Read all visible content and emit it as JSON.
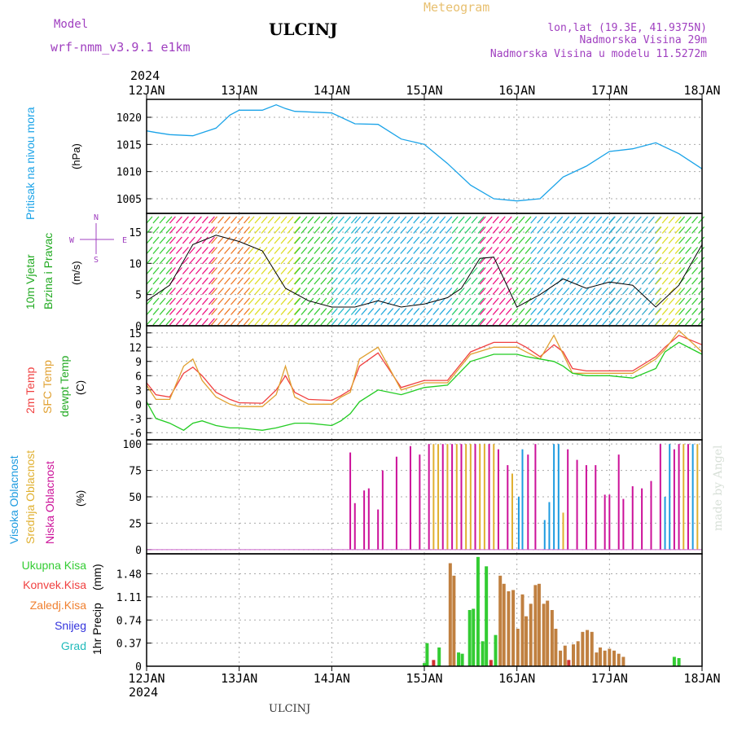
{
  "header": {
    "model_label": "Model",
    "model_name": "wrf-nmm_v3.9.1 e1km",
    "station": "ULCINJ",
    "meteogram": "Meteogram",
    "lonlat": "lon,lat (19.3E, 41.9375N)",
    "alt": "Nadmorska Visina 29m",
    "alt_model": "Nadmorska Visina u modelu 11.5272m",
    "footer_station": "ULCINJ",
    "credit": "made by Angel",
    "year": "2024"
  },
  "colors": {
    "pressure": "#1aa3e8",
    "temp2m": "#f04040",
    "sfc": "#e0a030",
    "dew": "#22cc22",
    "low": "#cc1199",
    "mid": "#e0b030",
    "high": "#1e9be0",
    "total": "#33cc33",
    "conv": "#d03030",
    "strat": "#c08040"
  },
  "chart_data": [
    {
      "type": "line",
      "panel": "pressure",
      "ylabel": [
        "Pritisak na nivou mora",
        "(hPa)"
      ],
      "x_ticks": [
        "12JAN",
        "13JAN",
        "14JAN",
        "15JAN",
        "16JAN",
        "17JAN",
        "18JAN"
      ],
      "y_ticks": [
        1005,
        1010,
        1015,
        1020
      ],
      "ylim": [
        1002.3,
        1023.3
      ],
      "grid": true,
      "series": [
        {
          "x": [
            0,
            0.1,
            0.25,
            0.5,
            0.75,
            0.9,
            1.0,
            1.25,
            1.4,
            1.5,
            1.6,
            2.0,
            2.25,
            2.5,
            2.75,
            3.0,
            3.25,
            3.5,
            3.75,
            4.0,
            4.25,
            4.5,
            4.75,
            5.0,
            5.25,
            5.5,
            5.75,
            6.0
          ],
          "values": [
            1017.5,
            1017.2,
            1016.8,
            1016.6,
            1018,
            1020.4,
            1021.3,
            1021.3,
            1022.3,
            1021.6,
            1021.1,
            1020.8,
            1018.8,
            1018.7,
            1016,
            1015,
            1011.5,
            1007.5,
            1005,
            1004.6,
            1005,
            1009,
            1011,
            1013.7,
            1014.2,
            1015.3,
            1013.3,
            1010.5
          ]
        }
      ]
    },
    {
      "type": "line",
      "panel": "wind",
      "ylabel": [
        "10m Vjetar",
        "Brzina i Pravac",
        "(m/s)"
      ],
      "compass": {
        "n": "N",
        "s": "S",
        "e": "E",
        "w": "W"
      },
      "y_ticks": [
        0,
        5,
        10,
        15
      ],
      "ylim": [
        0,
        18
      ],
      "grid": true,
      "series": [
        {
          "x": [
            0,
            0.25,
            0.5,
            0.75,
            1.0,
            1.25,
            1.5,
            1.75,
            2.0,
            2.25,
            2.5,
            2.75,
            3.0,
            3.25,
            3.4,
            3.6,
            3.75,
            4.0,
            4.25,
            4.5,
            4.75,
            5.0,
            5.25,
            5.5,
            5.75,
            6.0
          ],
          "values": [
            4,
            6.5,
            13,
            14.5,
            13.5,
            12,
            6,
            4,
            3,
            3,
            4,
            3,
            3.5,
            4.5,
            6,
            10.8,
            11,
            3,
            5,
            7.5,
            6,
            7,
            6.5,
            3,
            6.5,
            13
          ]
        }
      ],
      "arrow_bands": [
        {
          "x0": 0.0,
          "x1": 0.25,
          "color": "#33cc33"
        },
        {
          "x0": 0.25,
          "x1": 0.7,
          "color": "#ee1180"
        },
        {
          "x0": 0.7,
          "x1": 1.1,
          "color": "#ee7722"
        },
        {
          "x0": 1.1,
          "x1": 1.6,
          "color": "#dddd22"
        },
        {
          "x0": 1.6,
          "x1": 2.0,
          "color": "#33cc33"
        },
        {
          "x0": 2.0,
          "x1": 2.25,
          "color": "#22bbcc"
        },
        {
          "x0": 2.25,
          "x1": 3.3,
          "color": "#22aadd"
        },
        {
          "x0": 3.3,
          "x1": 3.6,
          "color": "#22cc66"
        },
        {
          "x0": 3.6,
          "x1": 3.95,
          "color": "#ee1180"
        },
        {
          "x0": 3.95,
          "x1": 4.15,
          "color": "#33cc33"
        },
        {
          "x0": 4.15,
          "x1": 5.0,
          "color": "#22aadd"
        },
        {
          "x0": 5.0,
          "x1": 5.5,
          "color": "#33aacc"
        },
        {
          "x0": 5.5,
          "x1": 5.75,
          "color": "#dddd22"
        },
        {
          "x0": 5.75,
          "x1": 6.0,
          "color": "#33cc33"
        }
      ]
    },
    {
      "type": "line",
      "panel": "temperature",
      "ylabel": [
        "2m Temp",
        "SFC Temp",
        "dewpt Temp",
        "(C)"
      ],
      "y_ticks": [
        -6,
        -3,
        0,
        3,
        6,
        9,
        12,
        15
      ],
      "ylim": [
        -7.5,
        16.5
      ],
      "grid": true,
      "series": [
        {
          "name": "2m Temp",
          "x": [
            0,
            0.1,
            0.25,
            0.4,
            0.5,
            0.6,
            0.75,
            0.9,
            1.0,
            1.25,
            1.4,
            1.5,
            1.6,
            1.75,
            2.0,
            2.1,
            2.2,
            2.3,
            2.5,
            2.75,
            3.0,
            3.25,
            3.5,
            3.75,
            4.0,
            4.1,
            4.25,
            4.4,
            4.5,
            4.6,
            4.75,
            5.0,
            5.25,
            5.5,
            5.6,
            5.75,
            6.0
          ],
          "values": [
            4.5,
            2,
            1.5,
            6.5,
            7.8,
            6,
            2.5,
            1,
            0.3,
            0.2,
            3,
            6,
            2.5,
            1,
            0.8,
            1.8,
            3,
            8,
            10.8,
            3.5,
            5,
            5,
            11,
            13,
            13,
            12,
            10,
            12.5,
            11,
            7.5,
            7,
            7,
            7,
            10,
            12,
            14.5,
            12.5
          ]
        },
        {
          "name": "SFC Temp",
          "x": [
            0,
            0.1,
            0.25,
            0.4,
            0.5,
            0.6,
            0.75,
            0.9,
            1.0,
            1.25,
            1.4,
            1.5,
            1.6,
            1.75,
            2.0,
            2.1,
            2.2,
            2.3,
            2.5,
            2.75,
            3.0,
            3.25,
            3.5,
            3.75,
            4.0,
            4.1,
            4.25,
            4.4,
            4.5,
            4.6,
            4.75,
            5.0,
            5.25,
            5.5,
            5.6,
            5.75,
            6.0
          ],
          "values": [
            4,
            1,
            1,
            8,
            9.5,
            5,
            1.5,
            0,
            -0.5,
            -0.5,
            2,
            8,
            1.5,
            0,
            0,
            1.5,
            2.5,
            9.5,
            12,
            3,
            4.5,
            4.5,
            10.5,
            12,
            12,
            11,
            9.5,
            14.5,
            10.5,
            6.5,
            6.5,
            6.5,
            6.5,
            9.5,
            11.5,
            15.5,
            11
          ]
        },
        {
          "name": "dewpt Temp",
          "x": [
            0,
            0.1,
            0.25,
            0.4,
            0.5,
            0.6,
            0.75,
            0.9,
            1.0,
            1.25,
            1.4,
            1.5,
            1.6,
            1.75,
            2.0,
            2.1,
            2.2,
            2.3,
            2.5,
            2.75,
            3.0,
            3.25,
            3.5,
            3.75,
            4.0,
            4.1,
            4.25,
            4.4,
            4.5,
            4.6,
            4.75,
            5.0,
            5.25,
            5.5,
            5.6,
            5.75,
            6.0
          ],
          "values": [
            0.5,
            -3,
            -4,
            -5.5,
            -4,
            -3.5,
            -4.5,
            -5,
            -5,
            -5.5,
            -5,
            -4.5,
            -4,
            -4,
            -4.5,
            -3.5,
            -2,
            0.5,
            3,
            2,
            3.5,
            4,
            9,
            10.5,
            10.5,
            10,
            9.5,
            9,
            8,
            6.5,
            6,
            6,
            5.5,
            7.5,
            11,
            13,
            10.5
          ]
        }
      ]
    },
    {
      "type": "bar",
      "panel": "cloud",
      "ylabel": [
        "Visoka Oblacnost",
        "Srednja Oblacnost",
        "Niska Oblacnost",
        "(%)"
      ],
      "y_ticks": [
        0,
        25,
        50,
        75,
        100
      ],
      "ylim": [
        -4,
        104
      ],
      "grid": true,
      "bars": [
        {
          "x": 2.2,
          "v": 92,
          "c": "low"
        },
        {
          "x": 2.25,
          "v": 44,
          "c": "low"
        },
        {
          "x": 2.35,
          "v": 56,
          "c": "low"
        },
        {
          "x": 2.4,
          "v": 58,
          "c": "low"
        },
        {
          "x": 2.5,
          "v": 38,
          "c": "low"
        },
        {
          "x": 2.55,
          "v": 75,
          "c": "low"
        },
        {
          "x": 2.7,
          "v": 88,
          "c": "low"
        },
        {
          "x": 2.85,
          "v": 98,
          "c": "low"
        },
        {
          "x": 2.95,
          "v": 90,
          "c": "low"
        },
        {
          "x": 3.05,
          "v": 100,
          "c": "low"
        },
        {
          "x": 3.1,
          "v": 100,
          "c": "mid"
        },
        {
          "x": 3.15,
          "v": 100,
          "c": "mid"
        },
        {
          "x": 3.2,
          "v": 100,
          "c": "low"
        },
        {
          "x": 3.25,
          "v": 100,
          "c": "mid"
        },
        {
          "x": 3.3,
          "v": 100,
          "c": "low"
        },
        {
          "x": 3.35,
          "v": 100,
          "c": "mid"
        },
        {
          "x": 3.4,
          "v": 100,
          "c": "low"
        },
        {
          "x": 3.45,
          "v": 100,
          "c": "mid"
        },
        {
          "x": 3.5,
          "v": 100,
          "c": "mid"
        },
        {
          "x": 3.55,
          "v": 100,
          "c": "low"
        },
        {
          "x": 3.6,
          "v": 100,
          "c": "mid"
        },
        {
          "x": 3.65,
          "v": 100,
          "c": "mid"
        },
        {
          "x": 3.7,
          "v": 100,
          "c": "low"
        },
        {
          "x": 3.75,
          "v": 100,
          "c": "mid"
        },
        {
          "x": 3.8,
          "v": 95,
          "c": "low"
        },
        {
          "x": 3.9,
          "v": 80,
          "c": "low"
        },
        {
          "x": 3.95,
          "v": 72,
          "c": "mid"
        },
        {
          "x": 4.02,
          "v": 50,
          "c": "high"
        },
        {
          "x": 4.06,
          "v": 95,
          "c": "high"
        },
        {
          "x": 4.12,
          "v": 90,
          "c": "low"
        },
        {
          "x": 4.2,
          "v": 100,
          "c": "low"
        },
        {
          "x": 4.3,
          "v": 28,
          "c": "high"
        },
        {
          "x": 4.35,
          "v": 45,
          "c": "high"
        },
        {
          "x": 4.4,
          "v": 100,
          "c": "high"
        },
        {
          "x": 4.45,
          "v": 100,
          "c": "high"
        },
        {
          "x": 4.5,
          "v": 35,
          "c": "mid"
        },
        {
          "x": 4.55,
          "v": 95,
          "c": "low"
        },
        {
          "x": 4.65,
          "v": 85,
          "c": "low"
        },
        {
          "x": 4.75,
          "v": 80,
          "c": "low"
        },
        {
          "x": 4.85,
          "v": 80,
          "c": "low"
        },
        {
          "x": 4.95,
          "v": 52,
          "c": "low"
        },
        {
          "x": 5.0,
          "v": 52,
          "c": "low"
        },
        {
          "x": 5.1,
          "v": 90,
          "c": "low"
        },
        {
          "x": 5.15,
          "v": 48,
          "c": "low"
        },
        {
          "x": 5.25,
          "v": 60,
          "c": "low"
        },
        {
          "x": 5.35,
          "v": 58,
          "c": "low"
        },
        {
          "x": 5.45,
          "v": 65,
          "c": "low"
        },
        {
          "x": 5.55,
          "v": 100,
          "c": "low"
        },
        {
          "x": 5.6,
          "v": 50,
          "c": "high"
        },
        {
          "x": 5.65,
          "v": 100,
          "c": "high"
        },
        {
          "x": 5.7,
          "v": 95,
          "c": "low"
        },
        {
          "x": 5.75,
          "v": 100,
          "c": "low"
        },
        {
          "x": 5.8,
          "v": 100,
          "c": "mid"
        },
        {
          "x": 5.85,
          "v": 100,
          "c": "low"
        },
        {
          "x": 5.9,
          "v": 100,
          "c": "high"
        },
        {
          "x": 5.95,
          "v": 100,
          "c": "mid"
        }
      ]
    },
    {
      "type": "bar",
      "panel": "precip",
      "ylabel": [
        "1hr Precip",
        "(mm)"
      ],
      "legend": [
        "Ukupna Kisa",
        "Konvek.Kisa",
        "Zaledj.Kisa",
        "Snijeg",
        "Grad"
      ],
      "y_ticks": [
        0,
        0.37,
        0.74,
        1.11,
        1.48
      ],
      "y_tick_labels": [
        "0",
        "0.37",
        "0.74",
        "1.11",
        "1.48"
      ],
      "ylim": [
        0,
        1.8
      ],
      "x_ticks": [
        "12JAN",
        "13JAN",
        "14JAN",
        "15JAN",
        "16JAN",
        "17JAN",
        "18JAN"
      ],
      "grid": true,
      "bars": [
        {
          "x": 3.0,
          "v": 0.05,
          "c": "total"
        },
        {
          "x": 3.03,
          "v": 0.37,
          "c": "total"
        },
        {
          "x": 3.1,
          "v": 0.1,
          "c": "conv"
        },
        {
          "x": 3.16,
          "v": 0.3,
          "c": "total"
        },
        {
          "x": 3.28,
          "v": 1.65,
          "c": "strat"
        },
        {
          "x": 3.32,
          "v": 1.45,
          "c": "strat"
        },
        {
          "x": 3.37,
          "v": 0.22,
          "c": "total"
        },
        {
          "x": 3.41,
          "v": 0.2,
          "c": "total"
        },
        {
          "x": 3.49,
          "v": 0.9,
          "c": "total"
        },
        {
          "x": 3.53,
          "v": 0.92,
          "c": "total"
        },
        {
          "x": 3.58,
          "v": 1.75,
          "c": "total"
        },
        {
          "x": 3.63,
          "v": 0.4,
          "c": "total"
        },
        {
          "x": 3.67,
          "v": 1.6,
          "c": "total"
        },
        {
          "x": 3.72,
          "v": 0.1,
          "c": "conv"
        },
        {
          "x": 3.77,
          "v": 0.5,
          "c": "total"
        },
        {
          "x": 3.82,
          "v": 1.45,
          "c": "strat"
        },
        {
          "x": 3.86,
          "v": 1.32,
          "c": "strat"
        },
        {
          "x": 3.91,
          "v": 1.2,
          "c": "strat"
        },
        {
          "x": 3.96,
          "v": 1.22,
          "c": "strat"
        },
        {
          "x": 4.01,
          "v": 0.6,
          "c": "strat"
        },
        {
          "x": 4.06,
          "v": 1.15,
          "c": "strat"
        },
        {
          "x": 4.1,
          "v": 0.8,
          "c": "strat"
        },
        {
          "x": 4.15,
          "v": 1.0,
          "c": "strat"
        },
        {
          "x": 4.2,
          "v": 1.3,
          "c": "strat"
        },
        {
          "x": 4.24,
          "v": 1.32,
          "c": "strat"
        },
        {
          "x": 4.29,
          "v": 1.0,
          "c": "strat"
        },
        {
          "x": 4.33,
          "v": 1.05,
          "c": "strat"
        },
        {
          "x": 4.38,
          "v": 0.9,
          "c": "strat"
        },
        {
          "x": 4.42,
          "v": 0.6,
          "c": "strat"
        },
        {
          "x": 4.47,
          "v": 0.25,
          "c": "strat"
        },
        {
          "x": 4.52,
          "v": 0.33,
          "c": "strat"
        },
        {
          "x": 4.56,
          "v": 0.1,
          "c": "conv"
        },
        {
          "x": 4.61,
          "v": 0.35,
          "c": "strat"
        },
        {
          "x": 4.66,
          "v": 0.4,
          "c": "strat"
        },
        {
          "x": 4.71,
          "v": 0.55,
          "c": "strat"
        },
        {
          "x": 4.76,
          "v": 0.58,
          "c": "strat"
        },
        {
          "x": 4.81,
          "v": 0.55,
          "c": "strat"
        },
        {
          "x": 4.86,
          "v": 0.22,
          "c": "strat"
        },
        {
          "x": 4.9,
          "v": 0.3,
          "c": "strat"
        },
        {
          "x": 4.95,
          "v": 0.25,
          "c": "strat"
        },
        {
          "x": 5.0,
          "v": 0.28,
          "c": "strat"
        },
        {
          "x": 5.05,
          "v": 0.25,
          "c": "strat"
        },
        {
          "x": 5.1,
          "v": 0.2,
          "c": "strat"
        },
        {
          "x": 5.15,
          "v": 0.15,
          "c": "strat"
        },
        {
          "x": 5.7,
          "v": 0.15,
          "c": "total"
        },
        {
          "x": 5.75,
          "v": 0.13,
          "c": "total"
        }
      ]
    }
  ]
}
